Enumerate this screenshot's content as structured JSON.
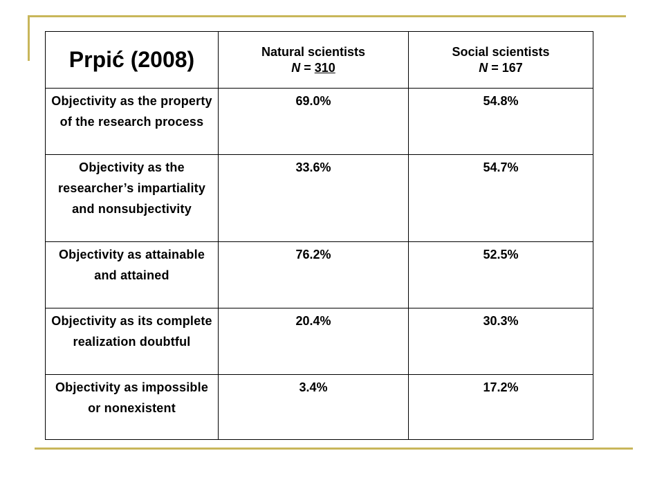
{
  "slide": {
    "accent_color": "#c8b65a"
  },
  "table": {
    "title": "Prpić (2008)",
    "columns": [
      {
        "name": "Natural  scientists",
        "n_label": "N",
        "n_eq": " = ",
        "n_value": "310"
      },
      {
        "name": "Social scientists",
        "n_label": "N",
        "n_eq": " = ",
        "n_value": "167"
      }
    ],
    "rows": [
      {
        "label": "Objectivity as the property of the research process",
        "values": [
          "69.0%",
          "54.8%"
        ]
      },
      {
        "label": "Objectivity as the researcher’s impartiality and nonsubjectivity",
        "values": [
          "33.6%",
          "54.7%"
        ]
      },
      {
        "label": "Objectivity as attainable and attained",
        "values": [
          "76.2%",
          "52.5%"
        ]
      },
      {
        "label": "Objectivity as its complete realization doubtful",
        "values": [
          "20.4%",
          "30.3%"
        ]
      },
      {
        "label": "Objectivity as impossible or nonexistent",
        "values": [
          "3.4%",
          "17.2%"
        ]
      }
    ]
  }
}
